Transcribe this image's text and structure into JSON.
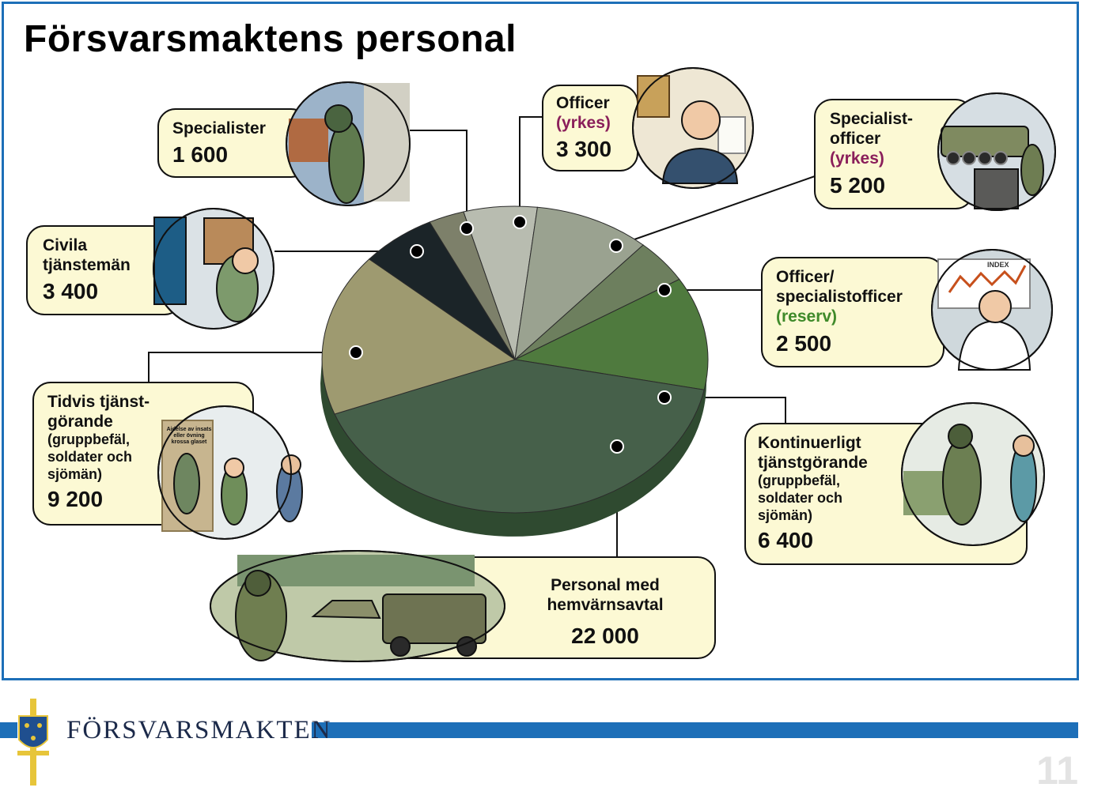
{
  "title": "Försvarsmaktens personal",
  "footer": {
    "brand": "FÖRSVARSMAKTEN",
    "page_number": "11",
    "bar_color": "#1d6fb8"
  },
  "chart_data": {
    "type": "pie",
    "title": "Försvarsmaktens personal",
    "slices": [
      {
        "label": "Officer (yrkes)",
        "value": 3300,
        "value_text": "3 300",
        "color": "#b8bcb0"
      },
      {
        "label": "Specialistofficer (yrkes)",
        "value": 5200,
        "value_text": "5 200",
        "color": "#9aa290"
      },
      {
        "label": "Officer/specialistofficer (reserv)",
        "value": 2500,
        "value_text": "2 500",
        "color": "#6d7f5e"
      },
      {
        "label": "Kontinuerligt tjänstgörande (gruppbefäl, soldater och sjömän)",
        "value": 6400,
        "value_text": "6 400",
        "color": "#4f7a3e"
      },
      {
        "label": "Personal med hemvärnsavtal",
        "value": 22000,
        "value_text": "22 000",
        "color": "#46604a"
      },
      {
        "label": "Tidvis tjänstgörande (gruppbefäl, soldater och sjömän)",
        "value": 9200,
        "value_text": "9 200",
        "color": "#9e9a70"
      },
      {
        "label": "Civila tjänstemän",
        "value": 3400,
        "value_text": "3 400",
        "color": "#1b2428"
      },
      {
        "label": "Specialister",
        "value": 1600,
        "value_text": "1 600",
        "color": "#7d806a"
      }
    ]
  },
  "labels": {
    "specialister": {
      "line1": "Specialister",
      "value": "1 600"
    },
    "officer": {
      "line1": "Officer",
      "qualifier": "(yrkes)",
      "value": "3 300"
    },
    "specofficer": {
      "line1": "Specialist-",
      "line2": "officer",
      "qualifier": "(yrkes)",
      "value": "5 200"
    },
    "civila": {
      "line1": "Civila",
      "line2": "tjänstemän",
      "value": "3 400"
    },
    "reserv": {
      "line1": "Officer/",
      "line2": "specialistofficer",
      "qualifier": "(reserv)",
      "value": "2 500"
    },
    "tidvis": {
      "line1": "Tidvis tjänst-",
      "line2": "görande",
      "sub1": "(gruppbefäl,",
      "sub2": "soldater och",
      "sub3": "sjömän)",
      "value": "9 200"
    },
    "kontinuerligt": {
      "line1": "Kontinuerligt",
      "line2": "tjänstgörande",
      "sub1": "(gruppbefäl,",
      "sub2": "soldater och",
      "sub3": "sjömän)",
      "value": "6 400"
    },
    "hemvarn": {
      "line1": "Personal med",
      "line2": "hemvärnsavtal",
      "value": "22 000"
    }
  },
  "poster_text": {
    "line1": "Aidelse av insats",
    "line2": "eller övning",
    "line3": "krossa glaset"
  },
  "index_text": "INDEX"
}
